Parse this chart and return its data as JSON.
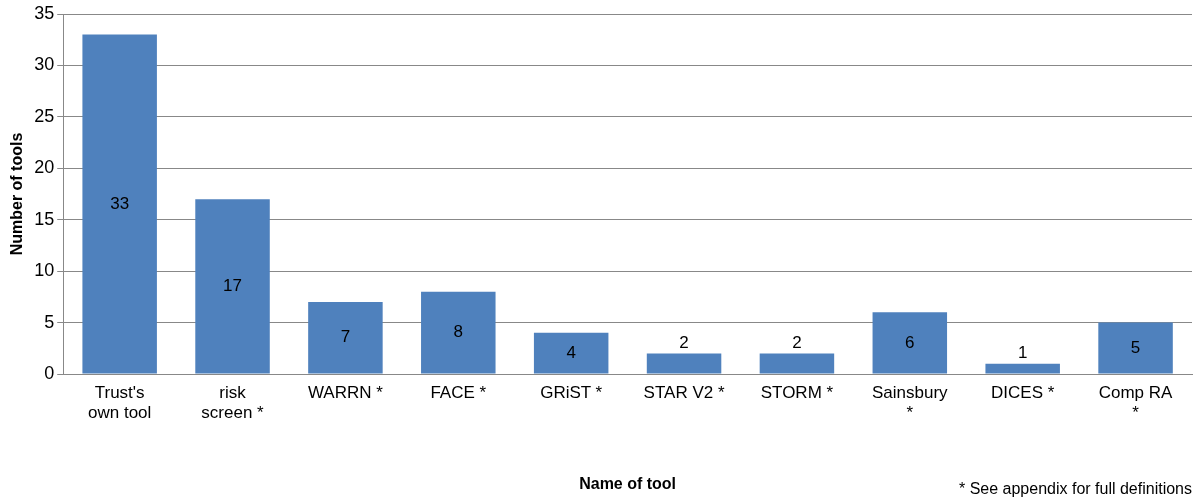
{
  "chart_data": {
    "type": "bar",
    "categories": [
      "Trust's own tool",
      "risk screen *",
      "WARRN *",
      "FACE *",
      "GRiST *",
      "STAR V2 *",
      "STORM *",
      "Sainsbury *",
      "DICES *",
      "Comp RA *"
    ],
    "values": [
      33,
      17,
      7,
      8,
      4,
      2,
      2,
      6,
      1,
      5
    ],
    "color": "#4f81bd",
    "xlabel": "Name of tool",
    "ylabel": "Number of tools",
    "ylim": [
      0,
      35
    ],
    "yticks": [
      0,
      5,
      10,
      15,
      20,
      25,
      30,
      35
    ],
    "grid": "y",
    "data_labels": true,
    "annotations": [
      "* See appendix for full definitions"
    ]
  }
}
